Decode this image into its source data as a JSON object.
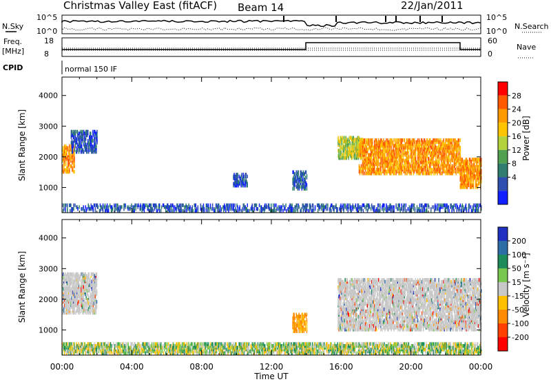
{
  "header": {
    "title": "Christmas Valley East (fitACF)",
    "beam": "Beam 14",
    "date": "22/Jan/2011"
  },
  "panel_labels": {
    "nsky": "N.Sky",
    "nsearch": "N.Search",
    "freq": "Freq.",
    "freq_unit": "[MHz]",
    "nave": "Nave",
    "cpid": "CPID",
    "mode": "normal 150 IF"
  },
  "noise_axis": {
    "left_top": "10^5",
    "left_bottom": "10^0",
    "right_top": "10^5",
    "right_bottom": "10^0"
  },
  "freq_axis": {
    "left_top": "18",
    "left_bottom": "8",
    "right_top": "60",
    "right_bottom": "0"
  },
  "time_axis": {
    "label": "Time UT",
    "ticks": [
      "00:00",
      "04:00",
      "08:00",
      "12:00",
      "16:00",
      "20:00",
      "00:00"
    ]
  },
  "power_colorbar": {
    "label": "Power [dB]",
    "ticks": [
      "28",
      "24",
      "20",
      "16",
      "12",
      "8",
      "4"
    ],
    "colors": [
      "#ff0000",
      "#ff5a00",
      "#ff9a00",
      "#ffc400",
      "#b4d23c",
      "#50a050",
      "#2e7d6e",
      "#2f4fb0",
      "#1020ff"
    ]
  },
  "velocity_colorbar": {
    "label": "Velocity [m s⁻¹]",
    "ticks": [
      "200",
      "100",
      "50",
      "15",
      "-15",
      "-50",
      "-100",
      "-200"
    ],
    "colors": [
      "#2030c0",
      "#2e6ea6",
      "#1e8c5a",
      "#78c850",
      "#c8c8c8",
      "#ffc000",
      "#ff8c00",
      "#ff4000",
      "#ff0000"
    ]
  },
  "chart_data": [
    {
      "type": "heatmap",
      "title": "Power",
      "xlabel": "Time UT",
      "ylabel": "Slant Range [km]",
      "xlim": [
        0,
        24
      ],
      "ylim": [
        180,
        4600
      ],
      "yticks": [
        1000,
        2000,
        3000,
        4000
      ],
      "colorbar_label": "Power [dB]",
      "regions": [
        {
          "t": [
            0.0,
            0.7
          ],
          "range": [
            1450,
            2300
          ],
          "level": "high"
        },
        {
          "t": [
            0.5,
            2.0
          ],
          "range": [
            2100,
            2800
          ],
          "level": "low"
        },
        {
          "t": [
            9.8,
            10.6
          ],
          "range": [
            1000,
            1400
          ],
          "level": "low"
        },
        {
          "t": [
            13.2,
            14.0
          ],
          "range": [
            900,
            1500
          ],
          "level": "low"
        },
        {
          "t": [
            15.8,
            17.2
          ],
          "range": [
            1900,
            2600
          ],
          "level": "mid"
        },
        {
          "t": [
            17.0,
            22.8
          ],
          "range": [
            1400,
            2500
          ],
          "level": "high"
        },
        {
          "t": [
            22.8,
            24.0
          ],
          "range": [
            950,
            1900
          ],
          "level": "high"
        },
        {
          "t": [
            0.0,
            24.0
          ],
          "range": [
            180,
            400
          ],
          "level": "low"
        }
      ]
    },
    {
      "type": "heatmap",
      "title": "Velocity",
      "xlabel": "Time UT",
      "ylabel": "Slant Range [km]",
      "xlim": [
        0,
        24
      ],
      "ylim": [
        180,
        4600
      ],
      "yticks": [
        1000,
        2000,
        3000,
        4000
      ],
      "colorbar_label": "Velocity [m s⁻¹]",
      "regions": [
        {
          "t": [
            0.0,
            2.0
          ],
          "range": [
            1500,
            2800
          ],
          "velocity": "-15 to 15"
        },
        {
          "t": [
            13.2,
            14.0
          ],
          "range": [
            900,
            1500
          ],
          "velocity": "-100 to -50"
        },
        {
          "t": [
            15.8,
            24.0
          ],
          "range": [
            950,
            2600
          ],
          "velocity": "-15 to 15"
        },
        {
          "t": [
            0.0,
            24.0
          ],
          "range": [
            180,
            500
          ],
          "velocity": "-50 to 50"
        }
      ]
    }
  ]
}
